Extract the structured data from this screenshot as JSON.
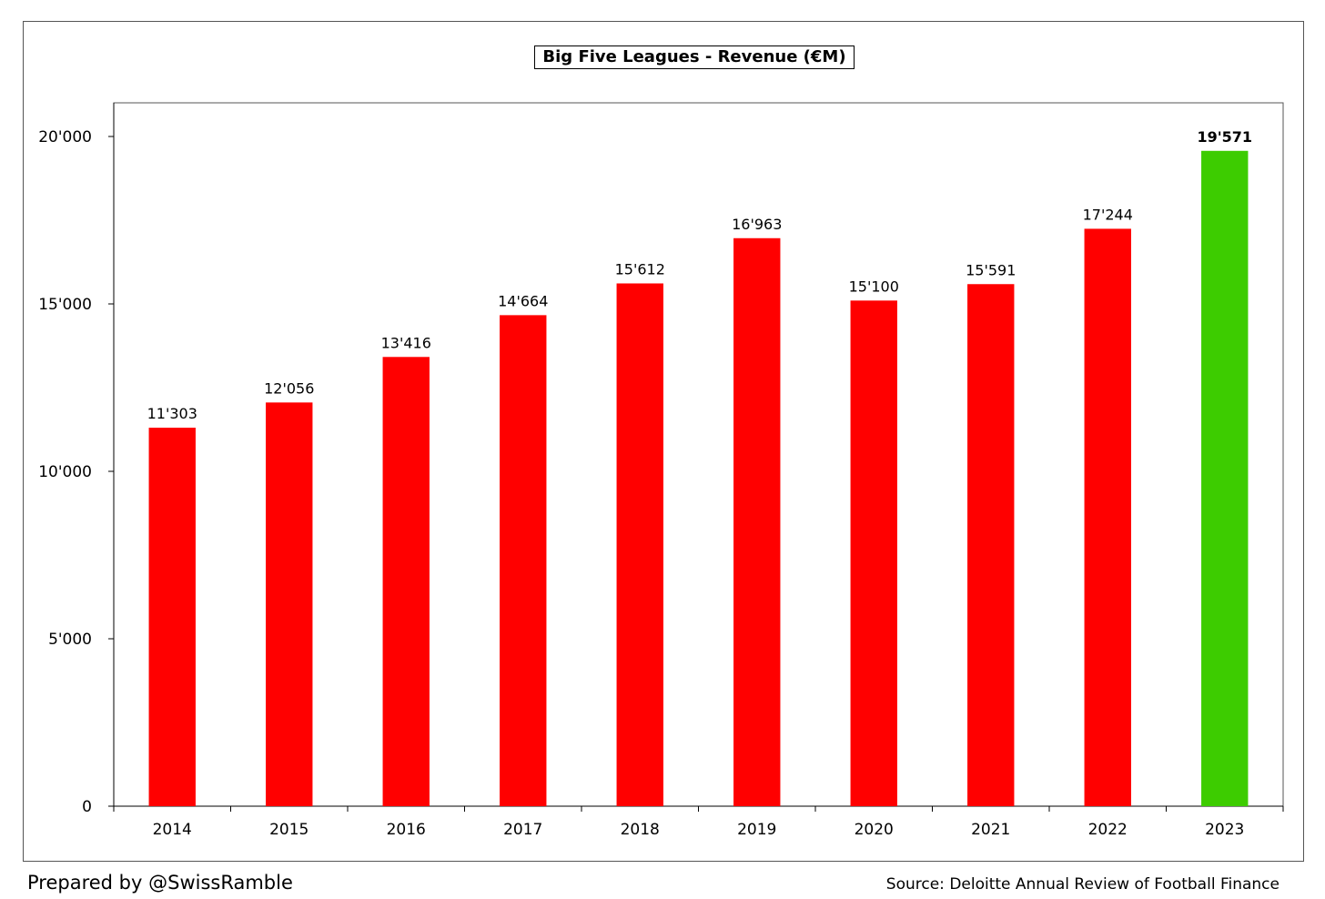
{
  "chart_data": {
    "type": "bar",
    "title": "Big Five Leagues - Revenue (€M)",
    "xlabel": "",
    "ylabel": "",
    "categories": [
      "2014",
      "2015",
      "2016",
      "2017",
      "2018",
      "2019",
      "2020",
      "2021",
      "2022",
      "2023"
    ],
    "values": [
      11303,
      12056,
      13416,
      14664,
      15612,
      16963,
      15100,
      15591,
      17244,
      19571
    ],
    "value_labels": [
      "11'303",
      "12'056",
      "13'416",
      "14'664",
      "15'612",
      "16'963",
      "15'100",
      "15'591",
      "17'244",
      "19'571"
    ],
    "highlight_index": 9,
    "ylim": [
      0,
      21000
    ],
    "yticks": [
      0,
      5000,
      10000,
      15000,
      20000
    ],
    "ytick_labels": [
      "0",
      "5'000",
      "10'000",
      "15'000",
      "20'000"
    ],
    "grid": false,
    "legend": "none",
    "colors": {
      "bar": "#ff0000",
      "highlight": "#3dcc00",
      "axis": "#000000"
    }
  },
  "footer": {
    "credit": "Prepared by @SwissRamble",
    "source": "Source: Deloitte Annual Review of Football Finance"
  }
}
